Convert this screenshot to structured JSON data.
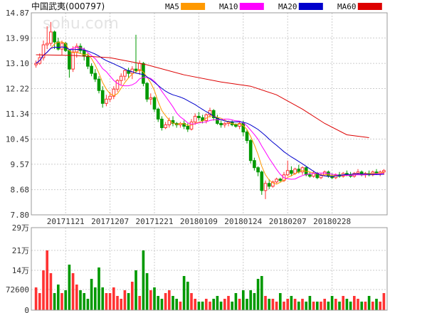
{
  "header": {
    "title": "中国武夷(000797)",
    "watermark": "sohu.com",
    "legend": [
      {
        "name": "MA5",
        "color": "#ff9900"
      },
      {
        "name": "MA10",
        "color": "#ff00ff"
      },
      {
        "name": "MA20",
        "color": "#0000cc"
      },
      {
        "name": "MA60",
        "color": "#dd0000"
      }
    ]
  },
  "colors": {
    "up": "#ff3333",
    "down": "#009900"
  },
  "chart_data": [
    {
      "type": "candlestick",
      "panel": "price",
      "ylim": [
        7.8,
        14.87
      ],
      "y_ticks": [
        "14.87",
        "13.99",
        "13.10",
        "12.22",
        "11.34",
        "10.45",
        "9.57",
        "8.68",
        "7.80"
      ],
      "y_tick_values": [
        14.87,
        13.99,
        13.1,
        12.22,
        11.34,
        10.45,
        9.57,
        8.68,
        7.8
      ],
      "x_tick_labels": [
        "20171121",
        "20171207",
        "20171221",
        "20180109",
        "20180124",
        "20180207",
        "20180228"
      ],
      "x_tick_index": [
        8,
        20,
        32,
        44,
        56,
        68,
        80
      ],
      "n": 95,
      "ohlc": [
        [
          13.05,
          13.2,
          12.95,
          13.1
        ],
        [
          13.1,
          13.45,
          13.05,
          13.3
        ],
        [
          13.3,
          13.9,
          13.2,
          13.75
        ],
        [
          13.75,
          14.4,
          13.6,
          13.8
        ],
        [
          13.8,
          14.55,
          13.7,
          14.2
        ],
        [
          14.2,
          14.25,
          13.6,
          13.85
        ],
        [
          13.85,
          14.0,
          13.55,
          13.6
        ],
        [
          13.6,
          13.9,
          13.4,
          13.8
        ],
        [
          13.8,
          13.85,
          13.5,
          13.55
        ],
        [
          13.55,
          13.6,
          12.6,
          12.9
        ],
        [
          12.9,
          13.7,
          12.8,
          13.5
        ],
        [
          13.5,
          13.8,
          13.3,
          13.7
        ],
        [
          13.7,
          13.8,
          13.45,
          13.55
        ],
        [
          13.55,
          13.65,
          13.2,
          13.35
        ],
        [
          13.35,
          13.45,
          12.9,
          13.0
        ],
        [
          13.0,
          13.1,
          12.65,
          12.75
        ],
        [
          12.75,
          12.9,
          12.45,
          12.55
        ],
        [
          12.55,
          12.65,
          12.05,
          12.15
        ],
        [
          12.15,
          12.3,
          11.55,
          11.7
        ],
        [
          11.7,
          12.0,
          11.6,
          11.85
        ],
        [
          11.85,
          12.1,
          11.75,
          11.95
        ],
        [
          11.95,
          12.3,
          11.85,
          12.2
        ],
        [
          12.2,
          12.55,
          12.1,
          12.5
        ],
        [
          12.5,
          12.75,
          12.35,
          12.65
        ],
        [
          12.65,
          12.9,
          12.5,
          12.85
        ],
        [
          12.85,
          12.95,
          12.6,
          12.75
        ],
        [
          12.75,
          13.0,
          12.55,
          12.9
        ],
        [
          12.9,
          14.1,
          12.75,
          12.85
        ],
        [
          12.85,
          13.2,
          12.7,
          13.1
        ],
        [
          13.1,
          13.15,
          12.3,
          12.4
        ],
        [
          12.4,
          12.45,
          11.75,
          11.85
        ],
        [
          11.85,
          12.05,
          11.65,
          11.9
        ],
        [
          11.9,
          11.95,
          11.4,
          11.5
        ],
        [
          11.5,
          11.55,
          11.05,
          11.15
        ],
        [
          11.15,
          11.25,
          10.75,
          10.85
        ],
        [
          10.85,
          11.05,
          10.8,
          10.95
        ],
        [
          10.95,
          11.2,
          10.85,
          11.1
        ],
        [
          11.1,
          11.25,
          10.9,
          11.0
        ],
        [
          11.0,
          11.05,
          10.85,
          10.95
        ],
        [
          10.95,
          11.05,
          10.85,
          11.0
        ],
        [
          11.0,
          11.1,
          10.8,
          10.9
        ],
        [
          10.9,
          11.0,
          10.7,
          10.8
        ],
        [
          10.8,
          11.15,
          10.75,
          11.05
        ],
        [
          11.05,
          11.35,
          10.95,
          11.25
        ],
        [
          11.25,
          11.4,
          11.1,
          11.2
        ],
        [
          11.2,
          11.3,
          11.0,
          11.1
        ],
        [
          11.1,
          11.35,
          11.0,
          11.3
        ],
        [
          11.3,
          11.55,
          11.2,
          11.45
        ],
        [
          11.45,
          11.5,
          11.1,
          11.2
        ],
        [
          11.2,
          11.3,
          10.95,
          11.0
        ],
        [
          11.0,
          11.1,
          10.85,
          10.95
        ],
        [
          10.95,
          11.05,
          10.85,
          11.0
        ],
        [
          11.0,
          11.1,
          10.9,
          11.05
        ],
        [
          11.05,
          11.1,
          10.9,
          10.95
        ],
        [
          10.95,
          11.0,
          10.85,
          10.9
        ],
        [
          10.9,
          11.05,
          10.8,
          11.0
        ],
        [
          11.0,
          11.1,
          10.55,
          10.7
        ],
        [
          10.7,
          10.8,
          10.3,
          10.4
        ],
        [
          10.4,
          10.45,
          9.6,
          9.7
        ],
        [
          9.7,
          9.8,
          9.35,
          9.45
        ],
        [
          9.45,
          9.5,
          9.15,
          9.3
        ],
        [
          9.3,
          9.35,
          8.5,
          8.65
        ],
        [
          8.65,
          9.0,
          8.35,
          8.9
        ],
        [
          8.9,
          9.05,
          8.7,
          8.8
        ],
        [
          8.8,
          9.0,
          8.75,
          8.95
        ],
        [
          8.95,
          9.1,
          8.9,
          9.05
        ],
        [
          9.05,
          9.1,
          8.95,
          9.0
        ],
        [
          9.0,
          9.3,
          8.95,
          9.2
        ],
        [
          9.2,
          9.7,
          9.15,
          9.35
        ],
        [
          9.35,
          9.5,
          9.15,
          9.25
        ],
        [
          9.25,
          9.45,
          9.2,
          9.4
        ],
        [
          9.4,
          9.55,
          9.25,
          9.3
        ],
        [
          9.3,
          9.5,
          9.2,
          9.45
        ],
        [
          9.45,
          9.5,
          9.15,
          9.2
        ],
        [
          9.2,
          9.3,
          9.1,
          9.15
        ],
        [
          9.15,
          9.35,
          9.1,
          9.25
        ],
        [
          9.25,
          9.3,
          9.05,
          9.1
        ],
        [
          9.1,
          9.25,
          9.05,
          9.2
        ],
        [
          9.2,
          9.35,
          9.15,
          9.3
        ],
        [
          9.3,
          9.35,
          9.1,
          9.15
        ],
        [
          9.15,
          9.25,
          9.05,
          9.1
        ],
        [
          9.1,
          9.25,
          9.05,
          9.2
        ],
        [
          9.2,
          9.3,
          9.1,
          9.15
        ],
        [
          9.15,
          9.3,
          9.1,
          9.25
        ],
        [
          9.25,
          9.35,
          9.15,
          9.2
        ],
        [
          9.2,
          9.3,
          9.1,
          9.15
        ],
        [
          9.15,
          9.3,
          9.1,
          9.25
        ],
        [
          9.25,
          9.4,
          9.2,
          9.3
        ],
        [
          9.3,
          9.35,
          9.15,
          9.2
        ],
        [
          9.2,
          9.3,
          9.1,
          9.25
        ],
        [
          9.25,
          9.35,
          9.15,
          9.2
        ],
        [
          9.2,
          9.35,
          9.15,
          9.3
        ],
        [
          9.3,
          9.4,
          9.2,
          9.25
        ],
        [
          9.25,
          9.35,
          9.15,
          9.3
        ],
        [
          9.3,
          9.4,
          9.2,
          9.35
        ]
      ],
      "series": [
        {
          "name": "MA60",
          "color": "#dd0000",
          "points": [
            [
              0,
              13.4
            ],
            [
              10,
              13.38
            ],
            [
              20,
              13.3
            ],
            [
              30,
              13.05
            ],
            [
              40,
              12.7
            ],
            [
              50,
              12.45
            ],
            [
              58,
              12.3
            ],
            [
              65,
              12.0
            ],
            [
              72,
              11.5
            ],
            [
              78,
              11.0
            ],
            [
              84,
              10.6
            ],
            [
              90,
              10.5
            ]
          ]
        }
      ]
    },
    {
      "type": "bar",
      "panel": "volume",
      "ylim": [
        0,
        290000
      ],
      "y_ticks": [
        "29万",
        "21万",
        "14万",
        "72600",
        "0"
      ],
      "y_tick_values": [
        290000,
        210000,
        140000,
        72600,
        0
      ],
      "values": [
        80000,
        60000,
        140000,
        210000,
        130000,
        60000,
        90000,
        60000,
        70000,
        160000,
        130000,
        90000,
        70000,
        60000,
        40000,
        110000,
        80000,
        150000,
        80000,
        60000,
        60000,
        80000,
        50000,
        40000,
        70000,
        60000,
        100000,
        140000,
        50000,
        210000,
        130000,
        70000,
        80000,
        50000,
        40000,
        60000,
        70000,
        50000,
        40000,
        30000,
        120000,
        100000,
        60000,
        40000,
        30000,
        30000,
        40000,
        30000,
        40000,
        50000,
        30000,
        40000,
        50000,
        30000,
        60000,
        40000,
        70000,
        40000,
        70000,
        60000,
        110000,
        120000,
        50000,
        40000,
        40000,
        30000,
        60000,
        30000,
        40000,
        50000,
        40000,
        30000,
        40000,
        30000,
        50000,
        30000,
        30000,
        30000,
        40000,
        30000,
        50000,
        40000,
        30000,
        50000,
        40000,
        30000,
        50000,
        40000,
        30000,
        30000,
        50000,
        30000,
        40000,
        30000,
        60000
      ]
    }
  ]
}
